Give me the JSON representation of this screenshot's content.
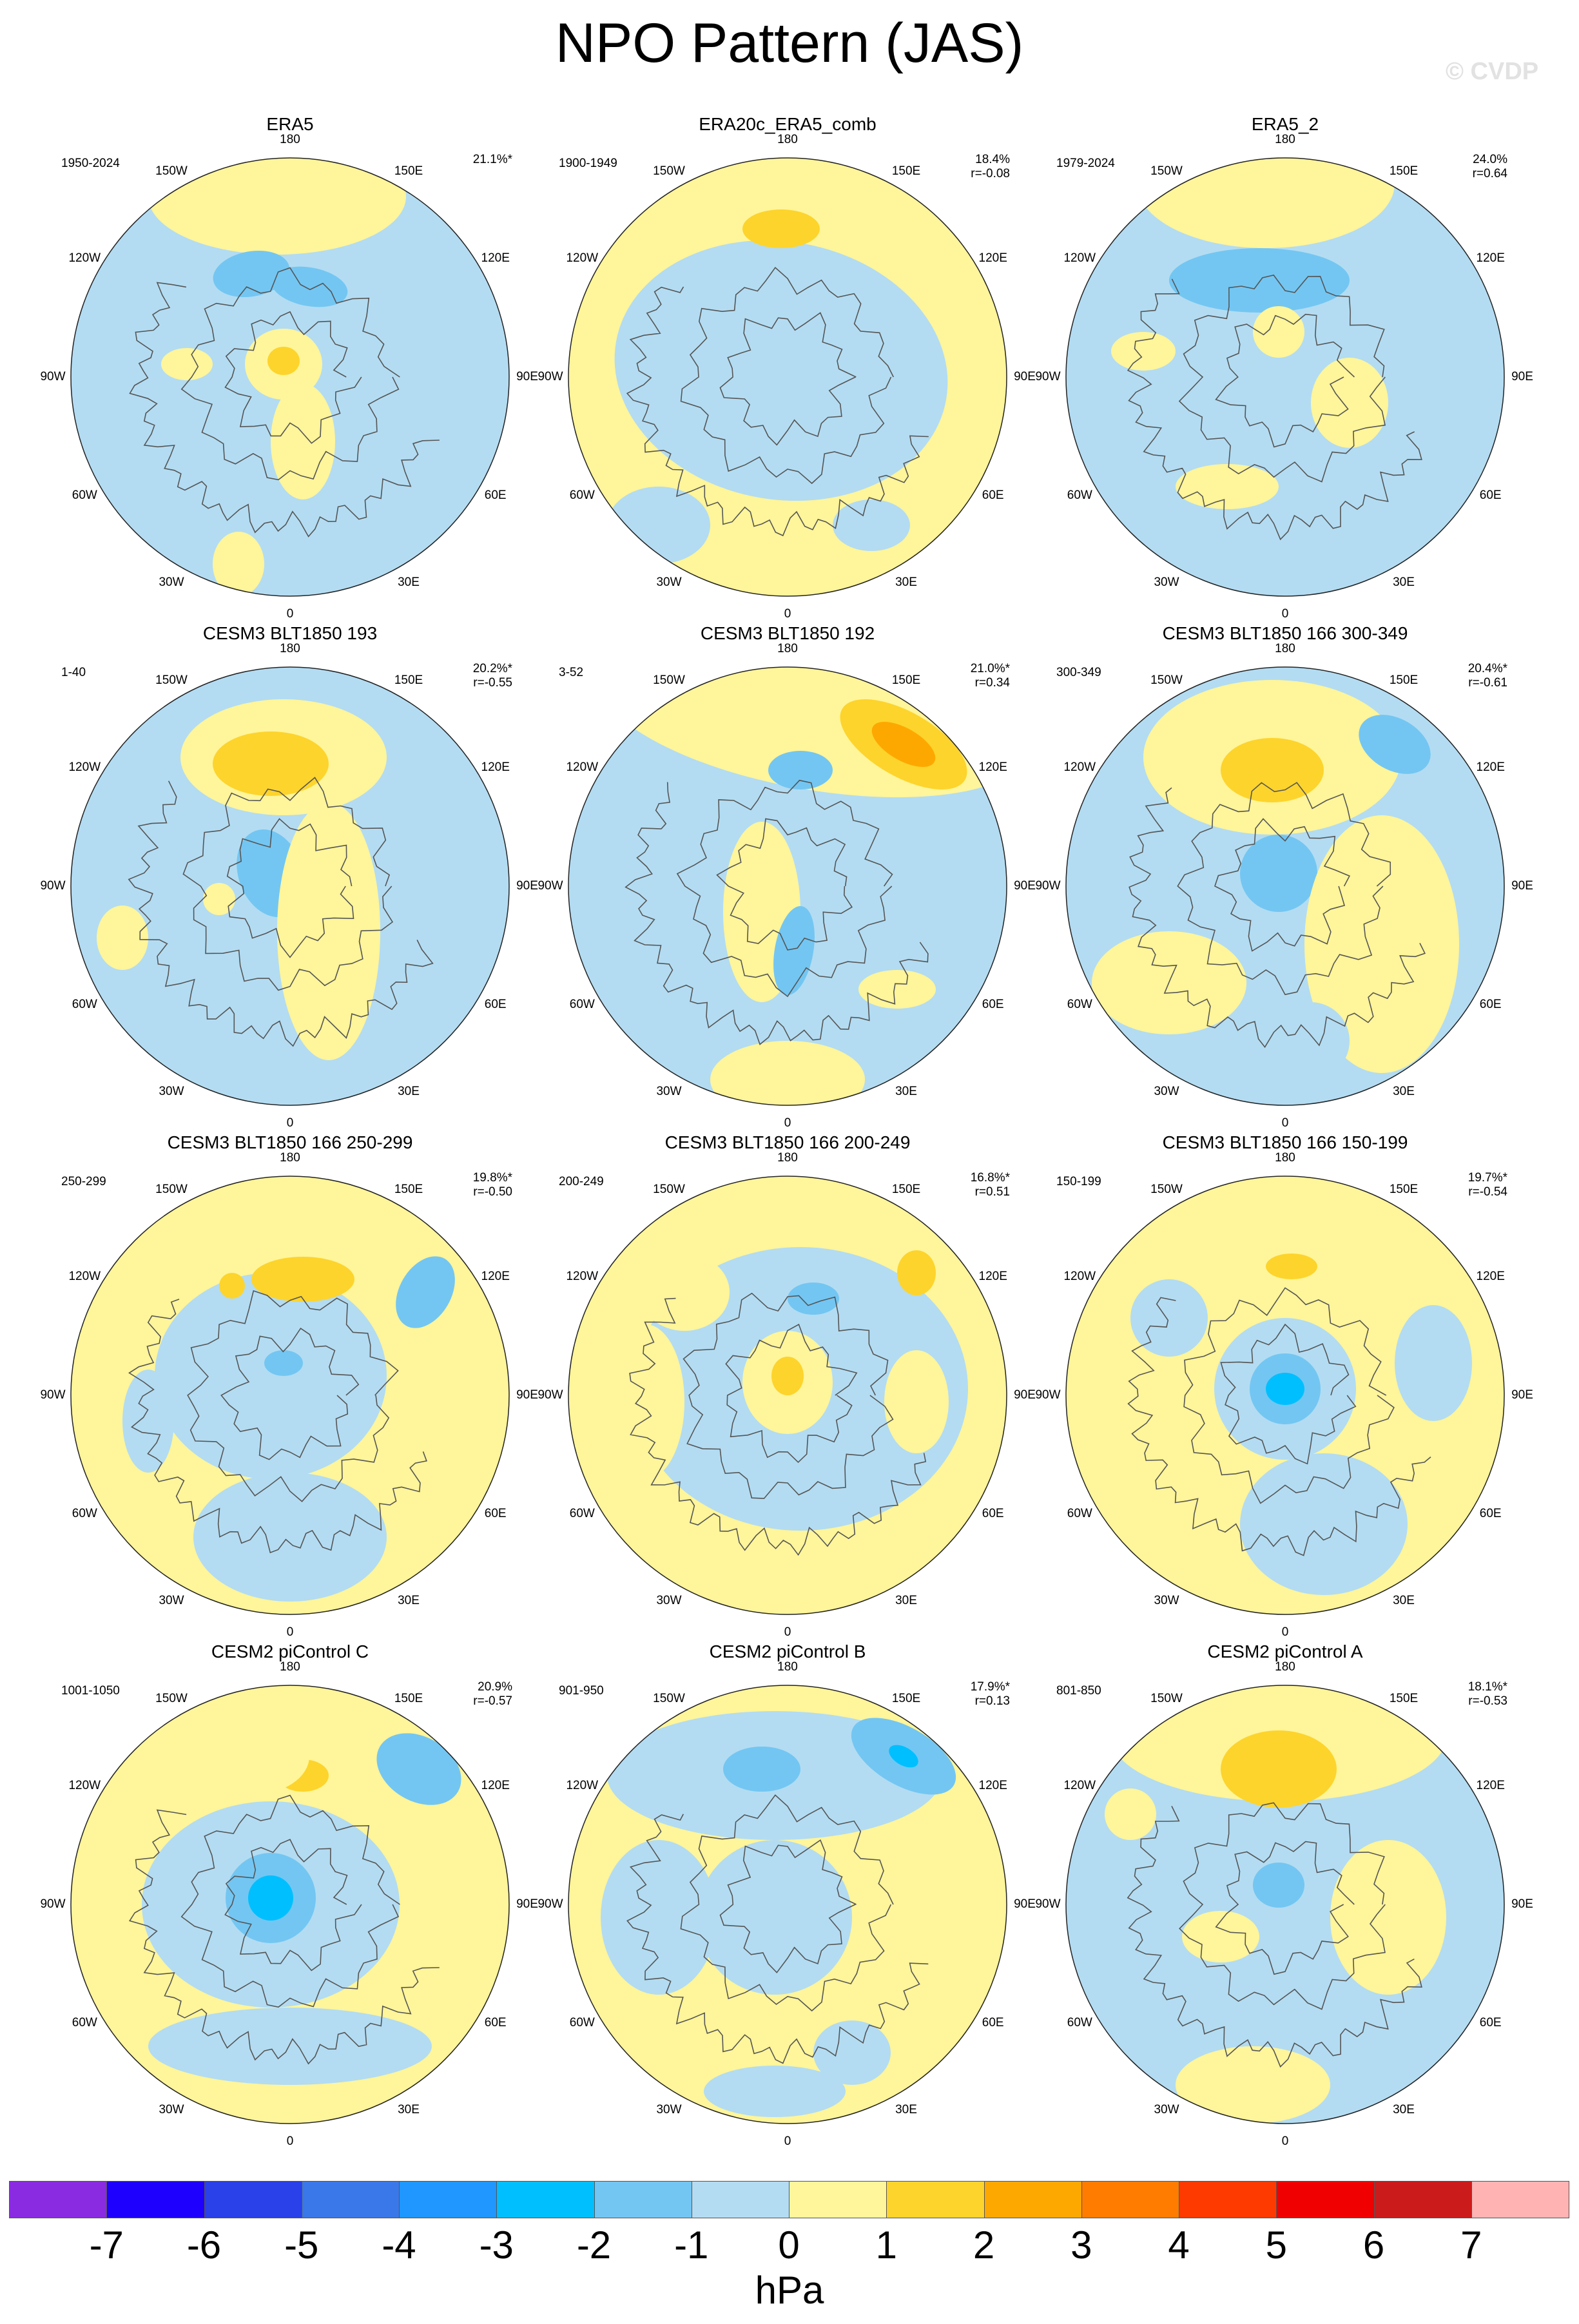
{
  "header": {
    "title": "NPO Pattern (JAS)",
    "watermark": "© CVDP"
  },
  "longitude_labels": [
    "180",
    "150E",
    "120E",
    "90E",
    "60E",
    "30E",
    "0",
    "30W",
    "60W",
    "90W",
    "120W",
    "150W"
  ],
  "colors": {
    "ocean": "#b3dcf2",
    "land_outline": "#555555"
  },
  "panels": [
    {
      "title": "ERA5",
      "period": "1950-2024",
      "pct": "21.1%*",
      "r": ""
    },
    {
      "title": "ERA20c_ERA5_comb",
      "period": "1900-1949",
      "pct": "18.4%",
      "r": "r=-0.08"
    },
    {
      "title": "ERA5_2",
      "period": "1979-2024",
      "pct": "24.0%",
      "r": "r=0.64"
    },
    {
      "title": "CESM3 BLT1850 193",
      "period": "1-40",
      "pct": "20.2%*",
      "r": "r=-0.55"
    },
    {
      "title": "CESM3 BLT1850 192",
      "period": "3-52",
      "pct": "21.0%*",
      "r": "r=0.34"
    },
    {
      "title": "CESM3 BLT1850 166 300-349",
      "period": "300-349",
      "pct": "20.4%*",
      "r": "r=-0.61"
    },
    {
      "title": "CESM3 BLT1850 166 250-299",
      "period": "250-299",
      "pct": "19.8%*",
      "r": "r=-0.50"
    },
    {
      "title": "CESM3 BLT1850 166 200-249",
      "period": "200-249",
      "pct": "16.8%*",
      "r": "r=0.51"
    },
    {
      "title": "CESM3 BLT1850 166 150-199",
      "period": "150-199",
      "pct": "19.7%*",
      "r": "r=-0.54"
    },
    {
      "title": "CESM2 piControl C",
      "period": "1001-1050",
      "pct": "20.9%",
      "r": "r=-0.57"
    },
    {
      "title": "CESM2 piControl B",
      "period": "901-950",
      "pct": "17.9%*",
      "r": "r=0.13"
    },
    {
      "title": "CESM2 piControl A",
      "period": "801-850",
      "pct": "18.1%*",
      "r": "r=-0.53"
    }
  ],
  "colorbar": {
    "colors": [
      "#8a2be2",
      "#1e00ff",
      "#2a40e8",
      "#3a78ea",
      "#1f97ff",
      "#00bfff",
      "#73c6f2",
      "#b3dcf2",
      "#fff59a",
      "#fdd42c",
      "#fda800",
      "#ff7c00",
      "#ff3a00",
      "#f00000",
      "#cc1b1b",
      "#ffb3b3"
    ],
    "ticks": [
      "-7",
      "-6",
      "-5",
      "-4",
      "-3",
      "-2",
      "-1",
      "0",
      "1",
      "2",
      "3",
      "4",
      "5",
      "6",
      "7"
    ],
    "units": "hPa"
  }
}
